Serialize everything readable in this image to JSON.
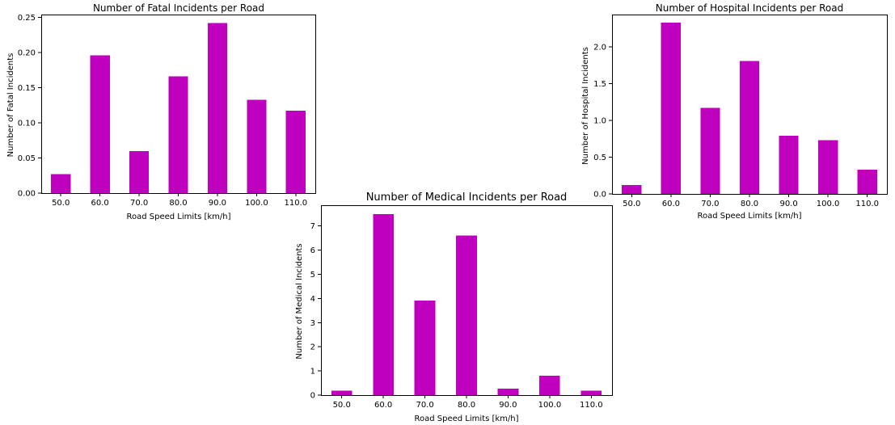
{
  "chart_data": [
    {
      "id": "fatal",
      "type": "bar",
      "title": "Number of Fatal Incidents per Road",
      "xlabel": "Road Speed Limits [km/h]",
      "ylabel": "Number of Fatal Incidents",
      "categories": [
        "50.0",
        "60.0",
        "70.0",
        "80.0",
        "90.0",
        "100.0",
        "110.0"
      ],
      "values": [
        0.027,
        0.196,
        0.06,
        0.166,
        0.242,
        0.133,
        0.117
      ],
      "ylim": [
        0,
        0.254
      ],
      "yticks": [
        0.0,
        0.05,
        0.1,
        0.15,
        0.2,
        0.25
      ],
      "ytick_labels": [
        "0.00",
        "0.05",
        "0.10",
        "0.15",
        "0.20",
        "0.25"
      ],
      "bar_color": "#bf00bf",
      "grid": false,
      "legend": "none"
    },
    {
      "id": "hospital",
      "type": "bar",
      "title": "Number of Hospital Incidents per Road",
      "xlabel": "Road Speed Limits [km/h]",
      "ylabel": "Number of Hospital Incidents",
      "categories": [
        "50.0",
        "60.0",
        "70.0",
        "80.0",
        "90.0",
        "100.0",
        "110.0"
      ],
      "values": [
        0.12,
        2.33,
        1.17,
        1.81,
        0.79,
        0.73,
        0.33
      ],
      "ylim": [
        0,
        2.44
      ],
      "yticks": [
        0.0,
        0.5,
        1.0,
        1.5,
        2.0
      ],
      "ytick_labels": [
        "0.0",
        "0.5",
        "1.0",
        "1.5",
        "2.0"
      ],
      "bar_color": "#bf00bf",
      "grid": false,
      "legend": "none"
    },
    {
      "id": "medical",
      "type": "bar",
      "title": "Number of Medical Incidents per Road",
      "xlabel": "Road Speed Limits [km/h]",
      "ylabel": "Number of Medical Incidents",
      "categories": [
        "50.0",
        "60.0",
        "70.0",
        "80.0",
        "90.0",
        "100.0",
        "110.0"
      ],
      "values": [
        0.18,
        7.5,
        3.92,
        6.6,
        0.26,
        0.8,
        0.19
      ],
      "ylim": [
        0,
        7.86
      ],
      "yticks": [
        0,
        1,
        2,
        3,
        4,
        5,
        6,
        7
      ],
      "ytick_labels": [
        "0",
        "1",
        "2",
        "3",
        "4",
        "5",
        "6",
        "7"
      ],
      "bar_color": "#bf00bf",
      "grid": false,
      "legend": "none"
    }
  ]
}
